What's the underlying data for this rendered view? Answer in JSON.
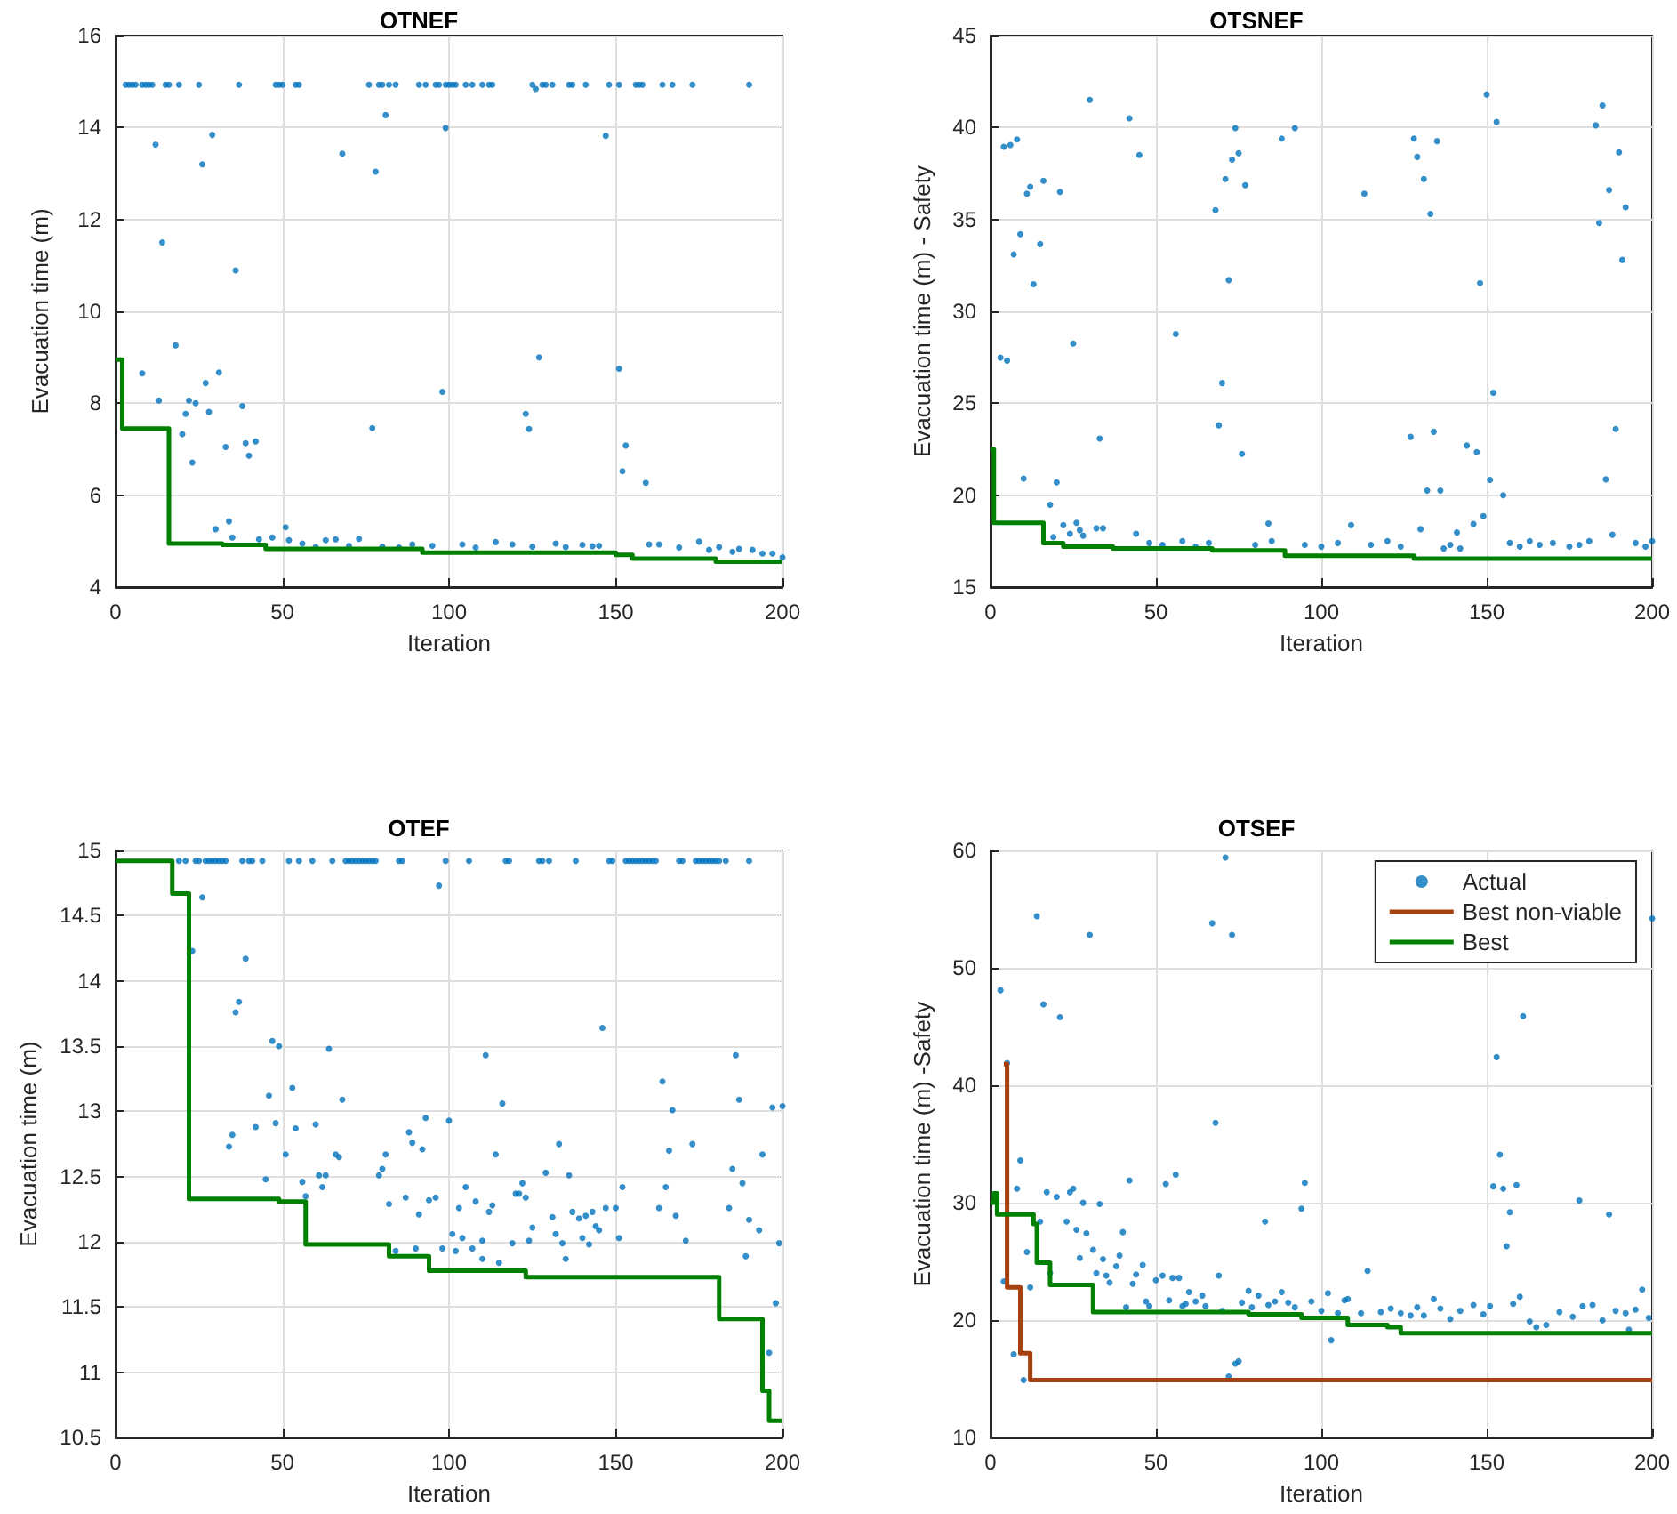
{
  "chart_data": [
    {
      "type": "scatter",
      "title": "OTNEF",
      "xlabel": "Iteration",
      "ylabel": "Evacuation time (m)",
      "xlim": [
        0,
        200
      ],
      "xticks": [
        0,
        50,
        100,
        150,
        200
      ],
      "ylim": [
        4,
        16
      ],
      "yticks": [
        4,
        6,
        8,
        10,
        12,
        14,
        16
      ],
      "grid": true,
      "legend": false,
      "series": [
        {
          "color": "#0072bd",
          "marker": "circle",
          "x": [
            3,
            4,
            5,
            6,
            8,
            9,
            10,
            11,
            15,
            16,
            19,
            25,
            37,
            48,
            49,
            50,
            54,
            55,
            76,
            79,
            80,
            82,
            84,
            91,
            93,
            96,
            97,
            99,
            100,
            101,
            102,
            105,
            107,
            110,
            112,
            113,
            125,
            128,
            129,
            131,
            136,
            137,
            141,
            148,
            151,
            156,
            157,
            158,
            164,
            167,
            173,
            190,
            126,
            12,
            14,
            8,
            13,
            18,
            20,
            21,
            22,
            23,
            24,
            26,
            27,
            28,
            29,
            31,
            30,
            33,
            34,
            35,
            36,
            38,
            39,
            40,
            42,
            43,
            47,
            51,
            52,
            68,
            77,
            78,
            81,
            98,
            99,
            123,
            124,
            127,
            147,
            151,
            152,
            153,
            159,
            56,
            63,
            66,
            73,
            89,
            104,
            114,
            119,
            132,
            140,
            143,
            160,
            163,
            169,
            175,
            178,
            181,
            185,
            187,
            191,
            194,
            197,
            200,
            60,
            70,
            80,
            85,
            95,
            108,
            125,
            135,
            145
          ],
          "values": [
            14.93,
            14.93,
            14.93,
            14.93,
            14.93,
            14.93,
            14.93,
            14.93,
            14.93,
            14.93,
            14.93,
            14.93,
            14.93,
            14.93,
            14.93,
            14.93,
            14.93,
            14.93,
            14.93,
            14.93,
            14.93,
            14.93,
            14.93,
            14.93,
            14.93,
            14.93,
            14.93,
            14.93,
            14.93,
            14.93,
            14.93,
            14.93,
            14.93,
            14.93,
            14.93,
            14.93,
            14.93,
            14.93,
            14.93,
            14.93,
            14.93,
            14.93,
            14.93,
            14.93,
            14.93,
            14.93,
            14.93,
            14.93,
            14.93,
            14.93,
            14.93,
            14.93,
            14.84,
            13.63,
            11.5,
            8.65,
            8.06,
            9.26,
            7.33,
            7.77,
            8.06,
            6.71,
            8.0,
            13.2,
            8.44,
            7.81,
            13.84,
            8.67,
            5.26,
            7.05,
            5.43,
            5.08,
            10.89,
            7.94,
            7.13,
            6.86,
            7.17,
            5.04,
            5.08,
            5.3,
            5.02,
            13.43,
            7.46,
            13.04,
            14.27,
            8.25,
            13.99,
            7.77,
            7.44,
            9.0,
            13.82,
            8.75,
            6.52,
            7.08,
            6.27,
            4.95,
            5.02,
            5.04,
            5.05,
            4.93,
            4.93,
            4.98,
            4.93,
            4.95,
            4.92,
            4.89,
            4.93,
            4.93,
            4.86,
            4.99,
            4.81,
            4.87,
            4.77,
            4.83,
            4.81,
            4.73,
            4.73,
            4.65,
            4.87,
            4.9,
            4.88,
            4.86,
            4.9,
            4.86,
            4.88,
            4.87,
            4.9
          ]
        },
        {
          "type": "step",
          "color": "#008000",
          "x": [
            0,
            2,
            16,
            32,
            45,
            92,
            150,
            155,
            180,
            200
          ],
          "values": [
            8.95,
            7.45,
            4.95,
            4.92,
            4.83,
            4.75,
            4.7,
            4.62,
            4.55,
            4.55
          ]
        }
      ]
    },
    {
      "type": "scatter",
      "title": "OTSNEF",
      "xlabel": "Iteration",
      "ylabel": "Evacuation time (m) - Safety",
      "xlim": [
        0,
        200
      ],
      "xticks": [
        0,
        50,
        100,
        150,
        200
      ],
      "ylim": [
        15,
        45
      ],
      "yticks": [
        15,
        20,
        25,
        30,
        35,
        40,
        45
      ],
      "grid": true,
      "legend": false,
      "series": [
        {
          "color": "#0072bd",
          "marker": "circle",
          "x": [
            3,
            5,
            4,
            6,
            8,
            7,
            9,
            10,
            11,
            12,
            13,
            15,
            16,
            18,
            19,
            20,
            21,
            22,
            24,
            25,
            26,
            27,
            28,
            30,
            32,
            33,
            34,
            42,
            44,
            45,
            56,
            68,
            69,
            70,
            71,
            72,
            73,
            74,
            75,
            76,
            77,
            84,
            88,
            92,
            109,
            113,
            127,
            128,
            129,
            130,
            131,
            132,
            133,
            134,
            135,
            136,
            141,
            144,
            147,
            146,
            148,
            149,
            150,
            151,
            152,
            153,
            155,
            183,
            184,
            185,
            186,
            187,
            188,
            189,
            190,
            191,
            192,
            48,
            52,
            58,
            62,
            66,
            80,
            85,
            95,
            100,
            105,
            115,
            120,
            124,
            137,
            139,
            142,
            157,
            160,
            163,
            166,
            170,
            175,
            178,
            181,
            195,
            198,
            200
          ],
          "values": [
            27.48,
            27.32,
            38.95,
            39.05,
            39.35,
            33.1,
            34.2,
            20.9,
            36.4,
            36.77,
            31.48,
            33.66,
            37.1,
            19.48,
            17.72,
            20.7,
            36.5,
            18.37,
            17.9,
            28.25,
            18.5,
            18.1,
            17.8,
            41.5,
            18.2,
            23.08,
            18.2,
            40.5,
            17.9,
            38.5,
            28.77,
            35.5,
            23.8,
            26.1,
            37.2,
            31.7,
            38.25,
            39.97,
            38.6,
            22.25,
            36.86,
            18.46,
            39.4,
            39.97,
            18.37,
            36.4,
            23.17,
            39.4,
            38.4,
            18.15,
            37.2,
            20.25,
            35.3,
            23.45,
            39.26,
            20.25,
            17.97,
            22.7,
            22.34,
            18.43,
            31.54,
            18.86,
            41.8,
            20.83,
            25.57,
            40.3,
            20.0,
            40.12,
            34.8,
            41.2,
            20.86,
            36.6,
            17.85,
            23.6,
            38.65,
            32.8,
            35.66,
            17.4,
            17.3,
            17.5,
            17.2,
            17.4,
            17.3,
            17.5,
            17.3,
            17.2,
            17.4,
            17.3,
            17.5,
            17.2,
            17.1,
            17.3,
            17.1,
            17.4,
            17.2,
            17.5,
            17.3,
            17.4,
            17.2,
            17.3,
            17.5,
            17.4,
            17.2,
            17.5
          ]
        },
        {
          "type": "step",
          "color": "#008000",
          "x": [
            0,
            1,
            16,
            22,
            37,
            67,
            89,
            128,
            200
          ],
          "values": [
            22.5,
            18.5,
            17.4,
            17.2,
            17.1,
            17.0,
            16.7,
            16.55,
            16.55
          ]
        }
      ]
    },
    {
      "type": "scatter",
      "title": "OTEF",
      "xlabel": "Iteration",
      "ylabel": "Evacuation time (m)",
      "xlim": [
        0,
        200
      ],
      "xticks": [
        0,
        50,
        100,
        150,
        200
      ],
      "ylim": [
        10.5,
        15
      ],
      "yticks": [
        10.5,
        11,
        11.5,
        12,
        12.5,
        13,
        13.5,
        14,
        14.5,
        15
      ],
      "grid": true,
      "legend": false,
      "series": [
        {
          "color": "#0072bd",
          "marker": "circle",
          "x": [
            19,
            21,
            24,
            25,
            27,
            28,
            29,
            30,
            31,
            32,
            33,
            38,
            40,
            41,
            44,
            52,
            55,
            59,
            65,
            69,
            70,
            71,
            72,
            73,
            74,
            75,
            76,
            77,
            78,
            85,
            86,
            99,
            106,
            117,
            118,
            127,
            128,
            130,
            138,
            148,
            149,
            153,
            154,
            155,
            156,
            157,
            158,
            159,
            160,
            161,
            162,
            169,
            170,
            174,
            175,
            176,
            177,
            178,
            179,
            180,
            181,
            183,
            190,
            97,
            26,
            23,
            39,
            37,
            36,
            47,
            49,
            64,
            111,
            146,
            186,
            164,
            53,
            46,
            68,
            116,
            167,
            187,
            197,
            200,
            93,
            100,
            42,
            48,
            60,
            54,
            88,
            35,
            34,
            89,
            92,
            133,
            173,
            166,
            66,
            67,
            51,
            81,
            114,
            194,
            80,
            129,
            185,
            61,
            63,
            79,
            136,
            45,
            56,
            122,
            105,
            165,
            152,
            62,
            188,
            120,
            121,
            57,
            96,
            87,
            123,
            94,
            108,
            113,
            82,
            103,
            147,
            150,
            163,
            184,
            112,
            137,
            139,
            141,
            143,
            168,
            131,
            91,
            190,
            144,
            145,
            193,
            125,
            101,
            132,
            104,
            124,
            110,
            119,
            134,
            171,
            151,
            140,
            142,
            199,
            98,
            90,
            107,
            84,
            102,
            110,
            135,
            189,
            115,
            198,
            196
          ],
          "values": [
            14.92,
            14.92,
            14.92,
            14.92,
            14.92,
            14.92,
            14.92,
            14.92,
            14.92,
            14.92,
            14.92,
            14.92,
            14.92,
            14.92,
            14.92,
            14.92,
            14.92,
            14.92,
            14.92,
            14.92,
            14.92,
            14.92,
            14.92,
            14.92,
            14.92,
            14.92,
            14.92,
            14.92,
            14.92,
            14.92,
            14.92,
            14.92,
            14.92,
            14.92,
            14.92,
            14.92,
            14.92,
            14.92,
            14.92,
            14.92,
            14.92,
            14.92,
            14.92,
            14.92,
            14.92,
            14.92,
            14.92,
            14.92,
            14.92,
            14.92,
            14.92,
            14.92,
            14.92,
            14.92,
            14.92,
            14.92,
            14.92,
            14.92,
            14.92,
            14.92,
            14.92,
            14.92,
            14.92,
            14.73,
            14.64,
            14.23,
            14.17,
            13.84,
            13.76,
            13.54,
            13.5,
            13.48,
            13.43,
            13.64,
            13.43,
            13.23,
            13.18,
            13.12,
            13.09,
            13.06,
            13.01,
            13.09,
            13.03,
            13.04,
            12.95,
            12.93,
            12.88,
            12.91,
            12.9,
            12.87,
            12.84,
            12.82,
            12.73,
            12.76,
            12.71,
            12.75,
            12.75,
            12.7,
            12.67,
            12.65,
            12.67,
            12.67,
            12.67,
            12.67,
            12.56,
            12.53,
            12.56,
            12.51,
            12.51,
            12.51,
            12.51,
            12.48,
            12.46,
            12.45,
            12.42,
            12.42,
            12.42,
            12.42,
            12.45,
            12.37,
            12.37,
            12.35,
            12.34,
            12.34,
            12.34,
            12.32,
            12.31,
            12.28,
            12.29,
            12.26,
            12.26,
            12.26,
            12.26,
            12.26,
            12.23,
            12.23,
            12.18,
            12.2,
            12.23,
            12.2,
            12.19,
            12.21,
            12.17,
            12.12,
            12.09,
            12.09,
            12.11,
            12.06,
            12.06,
            12.03,
            12.01,
            12.01,
            11.99,
            11.99,
            12.01,
            12.03,
            12.03,
            11.98,
            11.99,
            11.95,
            11.95,
            11.95,
            11.93,
            11.93,
            11.87,
            11.87,
            11.89,
            11.84,
            11.53,
            11.15
          ]
        },
        {
          "type": "step",
          "color": "#008000",
          "x": [
            0,
            17,
            22,
            49,
            57,
            82,
            94,
            123,
            181,
            194,
            196,
            200
          ],
          "values": [
            14.92,
            14.67,
            12.33,
            12.31,
            11.98,
            11.89,
            11.78,
            11.73,
            11.41,
            10.86,
            10.63,
            10.63
          ]
        }
      ]
    },
    {
      "type": "scatter",
      "title": "OTSEF",
      "xlabel": "Iteration",
      "ylabel": "Evacuation time (m) -Safety",
      "xlim": [
        0,
        200
      ],
      "xticks": [
        0,
        50,
        100,
        150,
        200
      ],
      "ylim": [
        10,
        60
      ],
      "yticks": [
        10,
        20,
        30,
        40,
        50,
        60
      ],
      "grid": true,
      "legend": "top right",
      "series": [
        {
          "name": "Actual",
          "color": "#0072bd",
          "marker": "circle",
          "x": [
            3,
            4,
            5,
            7,
            8,
            9,
            10,
            11,
            12,
            14,
            15,
            16,
            17,
            18,
            20,
            21,
            23,
            24,
            25,
            26,
            27,
            28,
            29,
            30,
            31,
            32,
            33,
            34,
            35,
            36,
            38,
            39,
            40,
            41,
            42,
            43,
            44,
            46,
            47,
            48,
            50,
            52,
            53,
            54,
            55,
            56,
            57,
            58,
            59,
            60,
            62,
            64,
            65,
            67,
            68,
            69,
            70,
            71,
            72,
            73,
            74,
            75,
            76,
            78,
            79,
            81,
            83,
            84,
            86,
            88,
            90,
            92,
            94,
            95,
            97,
            100,
            102,
            103,
            105,
            107,
            108,
            112,
            114,
            118,
            121,
            124,
            127,
            129,
            131,
            134,
            136,
            139,
            142,
            146,
            149,
            151,
            152,
            153,
            154,
            155,
            156,
            157,
            158,
            159,
            160,
            161,
            163,
            165,
            168,
            172,
            176,
            178,
            179,
            182,
            185,
            187,
            189,
            192,
            193,
            195,
            197,
            199,
            200
          ],
          "values": [
            48.1,
            23.3,
            41.9,
            17.1,
            31.2,
            33.6,
            14.9,
            25.8,
            22.8,
            54.4,
            28.4,
            46.9,
            30.9,
            24.0,
            30.5,
            45.8,
            28.4,
            30.9,
            31.2,
            27.7,
            25.3,
            30.0,
            27.4,
            52.8,
            26.0,
            24.0,
            29.9,
            25.2,
            23.8,
            23.2,
            24.6,
            25.5,
            27.5,
            21.1,
            31.9,
            23.1,
            23.9,
            24.7,
            21.6,
            21.2,
            23.4,
            23.8,
            31.6,
            21.7,
            23.6,
            32.4,
            23.6,
            21.2,
            21.4,
            22.4,
            21.6,
            22.1,
            21.2,
            53.8,
            36.8,
            23.8,
            20.8,
            59.4,
            15.2,
            52.8,
            16.3,
            16.5,
            21.5,
            22.5,
            21.1,
            22.1,
            28.4,
            21.3,
            21.6,
            22.4,
            21.5,
            21.1,
            29.5,
            31.7,
            21.6,
            20.8,
            22.3,
            18.3,
            20.6,
            21.7,
            21.8,
            20.6,
            24.2,
            20.7,
            21.0,
            20.6,
            20.4,
            21.1,
            20.4,
            21.8,
            21.0,
            20.1,
            20.8,
            21.3,
            20.5,
            21.2,
            31.4,
            42.4,
            34.1,
            31.2,
            26.3,
            29.2,
            21.4,
            31.5,
            22.0,
            45.9,
            19.9,
            19.4,
            19.6,
            20.7,
            20.3,
            30.2,
            21.2,
            21.3,
            20.0,
            29.0,
            20.8,
            20.6,
            19.2,
            20.9,
            22.6,
            20.2,
            54.2
          ]
        },
        {
          "name": "Best non-viable",
          "type": "step",
          "color": "#a5400f",
          "x": [
            4,
            5,
            9,
            12,
            200
          ],
          "values": [
            41.8,
            22.8,
            17.2,
            14.9,
            14.9
          ]
        },
        {
          "name": "Best",
          "type": "step",
          "color": "#008000",
          "x": [
            0,
            1,
            2,
            13,
            14,
            18,
            31,
            78,
            94,
            108,
            120,
            124,
            200
          ],
          "values": [
            30,
            30.8,
            29,
            28.2,
            24.9,
            23,
            20.7,
            20.5,
            20.2,
            19.6,
            19.4,
            18.9,
            18.9
          ]
        }
      ]
    }
  ]
}
